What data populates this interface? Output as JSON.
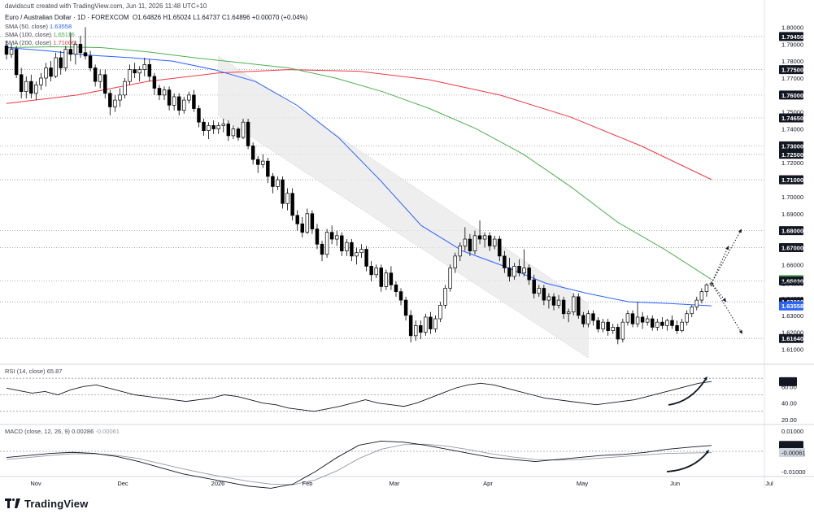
{
  "header": {
    "credit": "davidscutt created with TradingView.com, Jun 11, 2026 11:48 UTC+10",
    "symbol": "Euro / Australian Dollar · 1D · FOREXCOM",
    "open": "O1.64826",
    "high": "H1.65024",
    "low": "L1.64737",
    "close": "C1.64896",
    "change": "+0.00070 (+0.04%)"
  },
  "indicators": {
    "sma50_label": "SMA (50, close)",
    "sma50_value": "1.63558",
    "sma100_label": "SMA (100, close)",
    "sma100_value": "1.65116",
    "sma200_label": "SMA (200, close)",
    "sma200_value": "1.71006",
    "rsi_label": "RSI (14, close)",
    "rsi_value": "65.87",
    "macd_label": "MACD (close, 12, 26, 9)",
    "macd_value": "0.00286",
    "macd_signal_value": "-0.00061"
  },
  "colors": {
    "up": "#ffffff",
    "down": "#000000",
    "sma50": "#2962ff",
    "sma100": "#4caf50",
    "sma200": "#f23645",
    "rsi": "#131722",
    "macd": "#131722",
    "signal": "#9598a1",
    "channel": "#e8e8e8",
    "grid_dotted": "#9598a1"
  },
  "logo": {
    "text": "TradingView"
  },
  "chart_data": {
    "type": "candlestick",
    "x_labels": [
      "Nov",
      "Dec",
      "2026",
      "Feb",
      "Mar",
      "Apr",
      "May",
      "Jun",
      "Jul"
    ],
    "price_axis_ticks": [
      "1.80000",
      "1.79000",
      "1.78000",
      "1.77000",
      "1.76000",
      "1.75000",
      "1.74000",
      "1.73000",
      "1.72000",
      "1.71000",
      "1.70000",
      "1.69000",
      "1.68000",
      "1.67000",
      "1.66000",
      "1.65000",
      "1.64000",
      "1.63000",
      "1.62000",
      "1.61000"
    ],
    "price_ylim": [
      1.6045,
      1.8055
    ],
    "horizontal_levels": [
      "1.79450",
      "1.77500",
      "1.76000",
      "1.74650",
      "1.73000",
      "1.72500",
      "1.71000",
      "1.68000",
      "1.67000",
      "1.65030",
      "1.63800",
      "1.61640"
    ],
    "price_tags": [
      {
        "value": "1.79450",
        "style": "level"
      },
      {
        "value": "1.77500",
        "style": "level"
      },
      {
        "value": "1.76000",
        "style": "level"
      },
      {
        "value": "1.74650",
        "style": "level"
      },
      {
        "value": "1.73000",
        "style": "level"
      },
      {
        "value": "1.72500",
        "style": "level"
      },
      {
        "value": "1.71006",
        "style": "sma200"
      },
      {
        "value": "1.71000",
        "style": "level"
      },
      {
        "value": "1.68000",
        "style": "level"
      },
      {
        "value": "1.67000",
        "style": "level"
      },
      {
        "value": "1.65116",
        "style": "sma100"
      },
      {
        "value": "1.65030",
        "style": "level"
      },
      {
        "value": "1.64896",
        "style": "last"
      },
      {
        "value": "1.63800",
        "style": "level"
      },
      {
        "value": "1.63558",
        "style": "sma50"
      },
      {
        "value": "1.61640",
        "style": "level"
      }
    ],
    "ohlc": [
      [
        1.789,
        1.792,
        1.781,
        1.784
      ],
      [
        1.784,
        1.79,
        1.782,
        1.787
      ],
      [
        1.787,
        1.789,
        1.77,
        1.772
      ],
      [
        1.772,
        1.776,
        1.758,
        1.762
      ],
      [
        1.762,
        1.771,
        1.758,
        1.768
      ],
      [
        1.768,
        1.772,
        1.758,
        1.761
      ],
      [
        1.761,
        1.768,
        1.757,
        1.766
      ],
      [
        1.766,
        1.773,
        1.763,
        1.77
      ],
      [
        1.77,
        1.779,
        1.765,
        1.776
      ],
      [
        1.776,
        1.78,
        1.768,
        1.771
      ],
      [
        1.771,
        1.785,
        1.77,
        1.782
      ],
      [
        1.782,
        1.786,
        1.772,
        1.776
      ],
      [
        1.776,
        1.789,
        1.774,
        1.787
      ],
      [
        1.787,
        1.797,
        1.78,
        1.784
      ],
      [
        1.784,
        1.792,
        1.778,
        1.79
      ],
      [
        1.79,
        1.795,
        1.782,
        1.785
      ],
      [
        1.785,
        1.8,
        1.781,
        1.783
      ],
      [
        1.783,
        1.786,
        1.774,
        1.776
      ],
      [
        1.776,
        1.778,
        1.765,
        1.768
      ],
      [
        1.768,
        1.775,
        1.764,
        1.772
      ],
      [
        1.772,
        1.775,
        1.758,
        1.761
      ],
      [
        1.761,
        1.763,
        1.748,
        1.753
      ],
      [
        1.753,
        1.76,
        1.75,
        1.757
      ],
      [
        1.757,
        1.764,
        1.753,
        1.76
      ],
      [
        1.76,
        1.77,
        1.758,
        1.768
      ],
      [
        1.768,
        1.778,
        1.766,
        1.775
      ],
      [
        1.775,
        1.779,
        1.77,
        1.773
      ],
      [
        1.773,
        1.777,
        1.768,
        1.775
      ],
      [
        1.775,
        1.782,
        1.771,
        1.778
      ],
      [
        1.778,
        1.781,
        1.768,
        1.771
      ],
      [
        1.771,
        1.773,
        1.76,
        1.764
      ],
      [
        1.764,
        1.766,
        1.757,
        1.76
      ],
      [
        1.76,
        1.765,
        1.757,
        1.763
      ],
      [
        1.763,
        1.765,
        1.751,
        1.754
      ],
      [
        1.754,
        1.761,
        1.751,
        1.759
      ],
      [
        1.759,
        1.761,
        1.748,
        1.751
      ],
      [
        1.751,
        1.759,
        1.749,
        1.757
      ],
      [
        1.757,
        1.762,
        1.755,
        1.76
      ],
      [
        1.76,
        1.763,
        1.75,
        1.752
      ],
      [
        1.752,
        1.754,
        1.741,
        1.744
      ],
      [
        1.744,
        1.746,
        1.736,
        1.739
      ],
      [
        1.739,
        1.744,
        1.734,
        1.742
      ],
      [
        1.742,
        1.745,
        1.737,
        1.74
      ],
      [
        1.74,
        1.744,
        1.737,
        1.742
      ],
      [
        1.742,
        1.746,
        1.738,
        1.743
      ],
      [
        1.743,
        1.745,
        1.733,
        1.736
      ],
      [
        1.736,
        1.742,
        1.734,
        1.74
      ],
      [
        1.74,
        1.741,
        1.733,
        1.735
      ],
      [
        1.735,
        1.746,
        1.734,
        1.744
      ],
      [
        1.744,
        1.746,
        1.728,
        1.73
      ],
      [
        1.73,
        1.732,
        1.719,
        1.722
      ],
      [
        1.722,
        1.724,
        1.714,
        1.719
      ],
      [
        1.719,
        1.725,
        1.717,
        1.721
      ],
      [
        1.721,
        1.723,
        1.708,
        1.712
      ],
      [
        1.712,
        1.714,
        1.702,
        1.706
      ],
      [
        1.706,
        1.712,
        1.704,
        1.71
      ],
      [
        1.71,
        1.712,
        1.693,
        1.696
      ],
      [
        1.696,
        1.705,
        1.692,
        1.702
      ],
      [
        1.702,
        1.705,
        1.686,
        1.689
      ],
      [
        1.689,
        1.692,
        1.68,
        1.684
      ],
      [
        1.684,
        1.688,
        1.676,
        1.679
      ],
      [
        1.679,
        1.693,
        1.678,
        1.69
      ],
      [
        1.69,
        1.692,
        1.678,
        1.681
      ],
      [
        1.681,
        1.684,
        1.669,
        1.672
      ],
      [
        1.672,
        1.674,
        1.662,
        1.666
      ],
      [
        1.666,
        1.681,
        1.664,
        1.679
      ],
      [
        1.679,
        1.683,
        1.672,
        1.675
      ],
      [
        1.675,
        1.68,
        1.671,
        1.677
      ],
      [
        1.677,
        1.679,
        1.665,
        1.668
      ],
      [
        1.668,
        1.675,
        1.665,
        1.673
      ],
      [
        1.673,
        1.675,
        1.662,
        1.665
      ],
      [
        1.665,
        1.67,
        1.66,
        1.667
      ],
      [
        1.667,
        1.672,
        1.664,
        1.669
      ],
      [
        1.669,
        1.671,
        1.656,
        1.659
      ],
      [
        1.659,
        1.662,
        1.65,
        1.654
      ],
      [
        1.654,
        1.66,
        1.652,
        1.658
      ],
      [
        1.658,
        1.66,
        1.644,
        1.647
      ],
      [
        1.647,
        1.657,
        1.645,
        1.655
      ],
      [
        1.655,
        1.659,
        1.645,
        1.648
      ],
      [
        1.648,
        1.65,
        1.641,
        1.644
      ],
      [
        1.644,
        1.646,
        1.636,
        1.639
      ],
      [
        1.639,
        1.641,
        1.627,
        1.63
      ],
      [
        1.63,
        1.633,
        1.614,
        1.618
      ],
      [
        1.618,
        1.627,
        1.615,
        1.624
      ],
      [
        1.624,
        1.627,
        1.616,
        1.62
      ],
      [
        1.62,
        1.631,
        1.618,
        1.629
      ],
      [
        1.629,
        1.632,
        1.619,
        1.622
      ],
      [
        1.622,
        1.63,
        1.62,
        1.628
      ],
      [
        1.628,
        1.638,
        1.626,
        1.636
      ],
      [
        1.636,
        1.648,
        1.634,
        1.646
      ],
      [
        1.646,
        1.66,
        1.644,
        1.658
      ],
      [
        1.658,
        1.667,
        1.655,
        1.665
      ],
      [
        1.665,
        1.673,
        1.662,
        1.671
      ],
      [
        1.671,
        1.682,
        1.668,
        1.675
      ],
      [
        1.675,
        1.678,
        1.665,
        1.668
      ],
      [
        1.668,
        1.68,
        1.666,
        1.677
      ],
      [
        1.677,
        1.686,
        1.672,
        1.675
      ],
      [
        1.675,
        1.679,
        1.67,
        1.677
      ],
      [
        1.677,
        1.679,
        1.668,
        1.671
      ],
      [
        1.671,
        1.677,
        1.669,
        1.675
      ],
      [
        1.675,
        1.677,
        1.662,
        1.665
      ],
      [
        1.665,
        1.668,
        1.655,
        1.658
      ],
      [
        1.658,
        1.664,
        1.65,
        1.653
      ],
      [
        1.653,
        1.661,
        1.651,
        1.659
      ],
      [
        1.659,
        1.663,
        1.653,
        1.655
      ],
      [
        1.655,
        1.669,
        1.653,
        1.658
      ],
      [
        1.658,
        1.66,
        1.648,
        1.651
      ],
      [
        1.651,
        1.654,
        1.64,
        1.643
      ],
      [
        1.643,
        1.648,
        1.641,
        1.646
      ],
      [
        1.646,
        1.648,
        1.636,
        1.639
      ],
      [
        1.639,
        1.643,
        1.634,
        1.641
      ],
      [
        1.641,
        1.643,
        1.633,
        1.636
      ],
      [
        1.636,
        1.642,
        1.634,
        1.639
      ],
      [
        1.639,
        1.641,
        1.628,
        1.631
      ],
      [
        1.631,
        1.634,
        1.626,
        1.632
      ],
      [
        1.632,
        1.643,
        1.63,
        1.641
      ],
      [
        1.641,
        1.643,
        1.628,
        1.63
      ],
      [
        1.63,
        1.632,
        1.623,
        1.625
      ],
      [
        1.625,
        1.633,
        1.623,
        1.631
      ],
      [
        1.631,
        1.633,
        1.624,
        1.627
      ],
      [
        1.627,
        1.629,
        1.62,
        1.622
      ],
      [
        1.622,
        1.628,
        1.62,
        1.626
      ],
      [
        1.626,
        1.628,
        1.618,
        1.621
      ],
      [
        1.621,
        1.625,
        1.619,
        1.623
      ],
      [
        1.623,
        1.625,
        1.613,
        1.616
      ],
      [
        1.616,
        1.628,
        1.614,
        1.626
      ],
      [
        1.626,
        1.633,
        1.624,
        1.631
      ],
      [
        1.631,
        1.633,
        1.623,
        1.625
      ],
      [
        1.625,
        1.638,
        1.623,
        1.629
      ],
      [
        1.629,
        1.632,
        1.622,
        1.626
      ],
      [
        1.626,
        1.63,
        1.624,
        1.628
      ],
      [
        1.628,
        1.63,
        1.621,
        1.623
      ],
      [
        1.623,
        1.628,
        1.621,
        1.626
      ],
      [
        1.626,
        1.629,
        1.622,
        1.624
      ],
      [
        1.624,
        1.628,
        1.621,
        1.627
      ],
      [
        1.627,
        1.63,
        1.622,
        1.624
      ],
      [
        1.624,
        1.627,
        1.619,
        1.621
      ],
      [
        1.621,
        1.628,
        1.62,
        1.626
      ],
      [
        1.626,
        1.633,
        1.624,
        1.631
      ],
      [
        1.631,
        1.636,
        1.629,
        1.635
      ],
      [
        1.635,
        1.641,
        1.633,
        1.639
      ],
      [
        1.639,
        1.646,
        1.637,
        1.644
      ],
      [
        1.644,
        1.649,
        1.641,
        1.648
      ],
      [
        1.648,
        1.65,
        1.647,
        1.649
      ]
    ],
    "sma50_anchors": [
      [
        1.788,
        1.786
      ],
      [
        1.786,
        1.7835
      ],
      [
        1.7835,
        1.782
      ],
      [
        1.782,
        1.78
      ],
      [
        1.78,
        1.775
      ],
      [
        1.775,
        1.768
      ],
      [
        1.768,
        1.754
      ],
      [
        1.754,
        1.735
      ],
      [
        1.735,
        1.71
      ],
      [
        1.71,
        1.683
      ],
      [
        1.683,
        1.668
      ],
      [
        1.668,
        1.659
      ],
      [
        1.659,
        1.649
      ],
      [
        1.649,
        1.643
      ],
      [
        1.643,
        1.638
      ],
      [
        1.638,
        1.637
      ],
      [
        1.637,
        1.6356
      ]
    ],
    "sma100_anchors": [
      [
        1.788,
        1.7885
      ],
      [
        1.7885,
        1.788
      ],
      [
        1.788,
        1.7855
      ],
      [
        1.7855,
        1.782
      ],
      [
        1.782,
        1.779
      ],
      [
        1.779,
        1.776
      ],
      [
        1.776,
        1.77
      ],
      [
        1.77,
        1.762
      ],
      [
        1.762,
        1.752
      ],
      [
        1.752,
        1.74
      ],
      [
        1.74,
        1.725
      ],
      [
        1.725,
        1.706
      ],
      [
        1.706,
        1.685
      ],
      [
        1.685,
        1.669
      ],
      [
        1.669,
        1.6512
      ]
    ],
    "sma200_anchors": [
      [
        1.755,
        1.76
      ],
      [
        1.76,
        1.768
      ],
      [
        1.768,
        1.773
      ],
      [
        1.773,
        1.775
      ],
      [
        1.775,
        1.774
      ],
      [
        1.774,
        1.769
      ],
      [
        1.769,
        1.76
      ],
      [
        1.76,
        1.747
      ],
      [
        1.747,
        1.73
      ],
      [
        1.73,
        1.7101
      ]
    ],
    "channel": {
      "start_bar": 43,
      "end_bar": 117,
      "top_start": 1.783,
      "top_end": 1.637,
      "bottom_start": 1.748,
      "bottom_end": 1.605
    },
    "projection_arrows": [
      {
        "from": [
          1.649
        ],
        "to": 1.681,
        "style": "dotted"
      },
      {
        "from": [
          1.649
        ],
        "to": 1.671,
        "style": "dotted"
      },
      {
        "from": [
          1.649
        ],
        "to": 1.638,
        "style": "dotted"
      },
      {
        "from": [
          1.649
        ],
        "to": 1.619,
        "style": "dotted"
      }
    ],
    "rsi": {
      "label": "RSI (14, close)",
      "last": 65.87,
      "ylim": [
        20,
        80
      ],
      "axis_ticks": [
        "65.87",
        "60.00",
        "40.00",
        "20.00"
      ],
      "levels": [
        70,
        50,
        30
      ],
      "anchors": [
        58,
        55,
        52,
        54,
        50,
        56,
        60,
        62,
        58,
        54,
        50,
        48,
        46,
        44,
        42,
        44,
        46,
        50,
        48,
        44,
        40,
        38,
        34,
        32,
        30,
        33,
        36,
        40,
        44,
        40,
        38,
        36,
        40,
        46,
        52,
        58,
        62,
        64,
        62,
        58,
        54,
        50,
        46,
        44,
        42,
        40,
        38,
        40,
        42,
        44,
        48,
        52,
        56,
        60,
        64,
        66
      ]
    },
    "macd": {
      "label": "MACD (close, 12, 26, 9)",
      "macd_value": 0.00286,
      "signal_value": -0.00061,
      "ylim": [
        -0.0115,
        0.0115
      ],
      "axis_ticks": [
        "0.01000",
        "0.00286",
        "-0.00061",
        "-0.01000"
      ],
      "macd_anchors": [
        -0.003,
        -0.002,
        -0.001,
        -0.0005,
        -0.001,
        -0.0025,
        -0.005,
        -0.008,
        -0.011,
        -0.013,
        -0.015,
        -0.017,
        -0.018,
        -0.016,
        -0.01,
        -0.003,
        0.003,
        0.005,
        0.0045,
        0.003,
        0.001,
        -0.001,
        -0.003,
        -0.004,
        -0.005,
        -0.004,
        -0.003,
        -0.002,
        -0.0015,
        -0.0005,
        0.001,
        0.002,
        0.00286
      ],
      "signal_anchors": [
        -0.004,
        -0.003,
        -0.002,
        -0.0012,
        -0.0012,
        -0.002,
        -0.0035,
        -0.006,
        -0.0085,
        -0.0108,
        -0.0128,
        -0.0146,
        -0.016,
        -0.0163,
        -0.014,
        -0.0095,
        -0.0035,
        0.001,
        0.0032,
        0.0035,
        0.0025,
        0.0008,
        -0.0012,
        -0.0028,
        -0.004,
        -0.0043,
        -0.004,
        -0.0033,
        -0.0025,
        -0.0017,
        -0.001,
        -0.0008,
        -0.00061
      ]
    }
  }
}
